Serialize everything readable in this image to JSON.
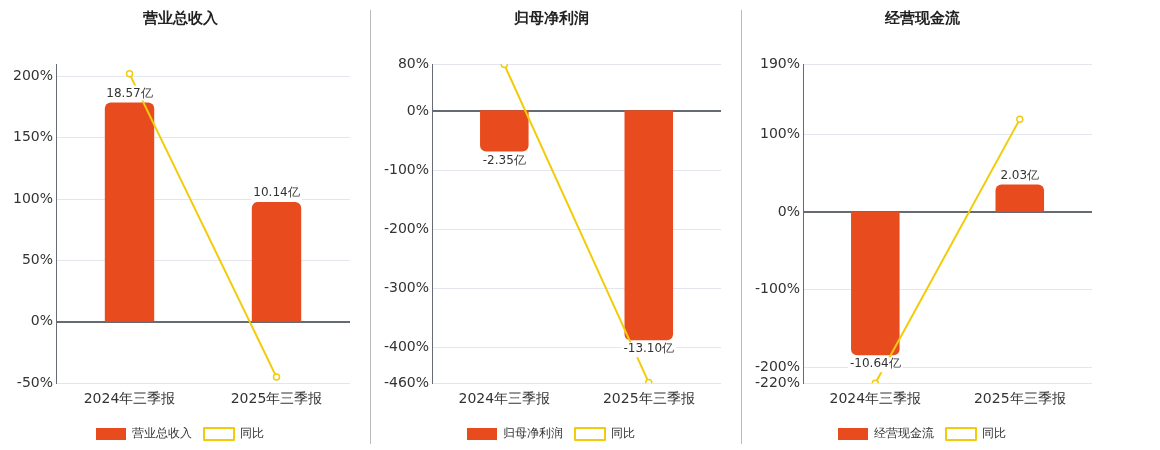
{
  "chart_data": [
    {
      "type": "bar",
      "title": "营业总收入",
      "categories": [
        "2024年三季报",
        "2025年三季报"
      ],
      "series": [
        {
          "name": "营业总收入",
          "axis": "y2",
          "color": "#e84c1e",
          "values": [
            18.57,
            10.14
          ],
          "value_labels": [
            "18.57亿",
            "10.14亿"
          ]
        },
        {
          "name": "同比",
          "type": "line",
          "color": "#f2cc0c",
          "values": [
            202,
            -45
          ],
          "marker": "circle"
        }
      ],
      "ylim": [
        -50,
        210
      ],
      "yticks": [
        {
          "value": -50,
          "label": "-50%"
        },
        {
          "value": 0,
          "label": "0%"
        },
        {
          "value": 50,
          "label": "50%"
        },
        {
          "value": 100,
          "label": "100%"
        },
        {
          "value": 150,
          "label": "150%"
        },
        {
          "value": 200,
          "label": "200%"
        }
      ],
      "y2lim": [
        -5.2,
        21.83
      ],
      "grid": "y",
      "legend": "bottom"
    },
    {
      "type": "bar",
      "title": "归母净利润",
      "categories": [
        "2024年三季报",
        "2025年三季报"
      ],
      "series": [
        {
          "name": "归母净利润",
          "axis": "y2",
          "color": "#e84c1e",
          "values": [
            -2.35,
            -13.1
          ],
          "value_labels": [
            "-2.35亿",
            "-13.10亿"
          ]
        },
        {
          "name": "同比",
          "type": "line",
          "color": "#f2cc0c",
          "values": [
            79,
            -459
          ],
          "marker": "circle"
        }
      ],
      "ylim": [
        -460,
        80
      ],
      "yticks": [
        {
          "value": -460,
          "label": "-460%"
        },
        {
          "value": -400,
          "label": "-400%"
        },
        {
          "value": -300,
          "label": "-300%"
        },
        {
          "value": -200,
          "label": "-200%"
        },
        {
          "value": -100,
          "label": "-100%"
        },
        {
          "value": 0,
          "label": "0%"
        },
        {
          "value": 80,
          "label": "80%"
        }
      ],
      "y2lim": [
        -15.54,
        2.64
      ],
      "grid": "y",
      "legend": "bottom"
    },
    {
      "type": "bar",
      "title": "经营现金流",
      "categories": [
        "2024年三季报",
        "2025年三季报"
      ],
      "series": [
        {
          "name": "经营现金流",
          "axis": "y2",
          "color": "#e84c1e",
          "values": [
            -10.64,
            2.03
          ],
          "value_labels": [
            "-10.64亿",
            "2.03亿"
          ]
        },
        {
          "name": "同比",
          "type": "line",
          "color": "#f2cc0c",
          "values": [
            -220,
            119
          ],
          "marker": "circle"
        }
      ],
      "ylim": [
        -220,
        190
      ],
      "yticks": [
        {
          "value": -220,
          "label": "-220%"
        },
        {
          "value": -200,
          "label": "-200%"
        },
        {
          "value": -100,
          "label": "-100%"
        },
        {
          "value": 0,
          "label": "0%"
        },
        {
          "value": 100,
          "label": "100%"
        },
        {
          "value": 190,
          "label": "190%"
        }
      ],
      "y2lim": [
        -12.72,
        10.97
      ],
      "grid": "y",
      "legend": "bottom"
    }
  ]
}
